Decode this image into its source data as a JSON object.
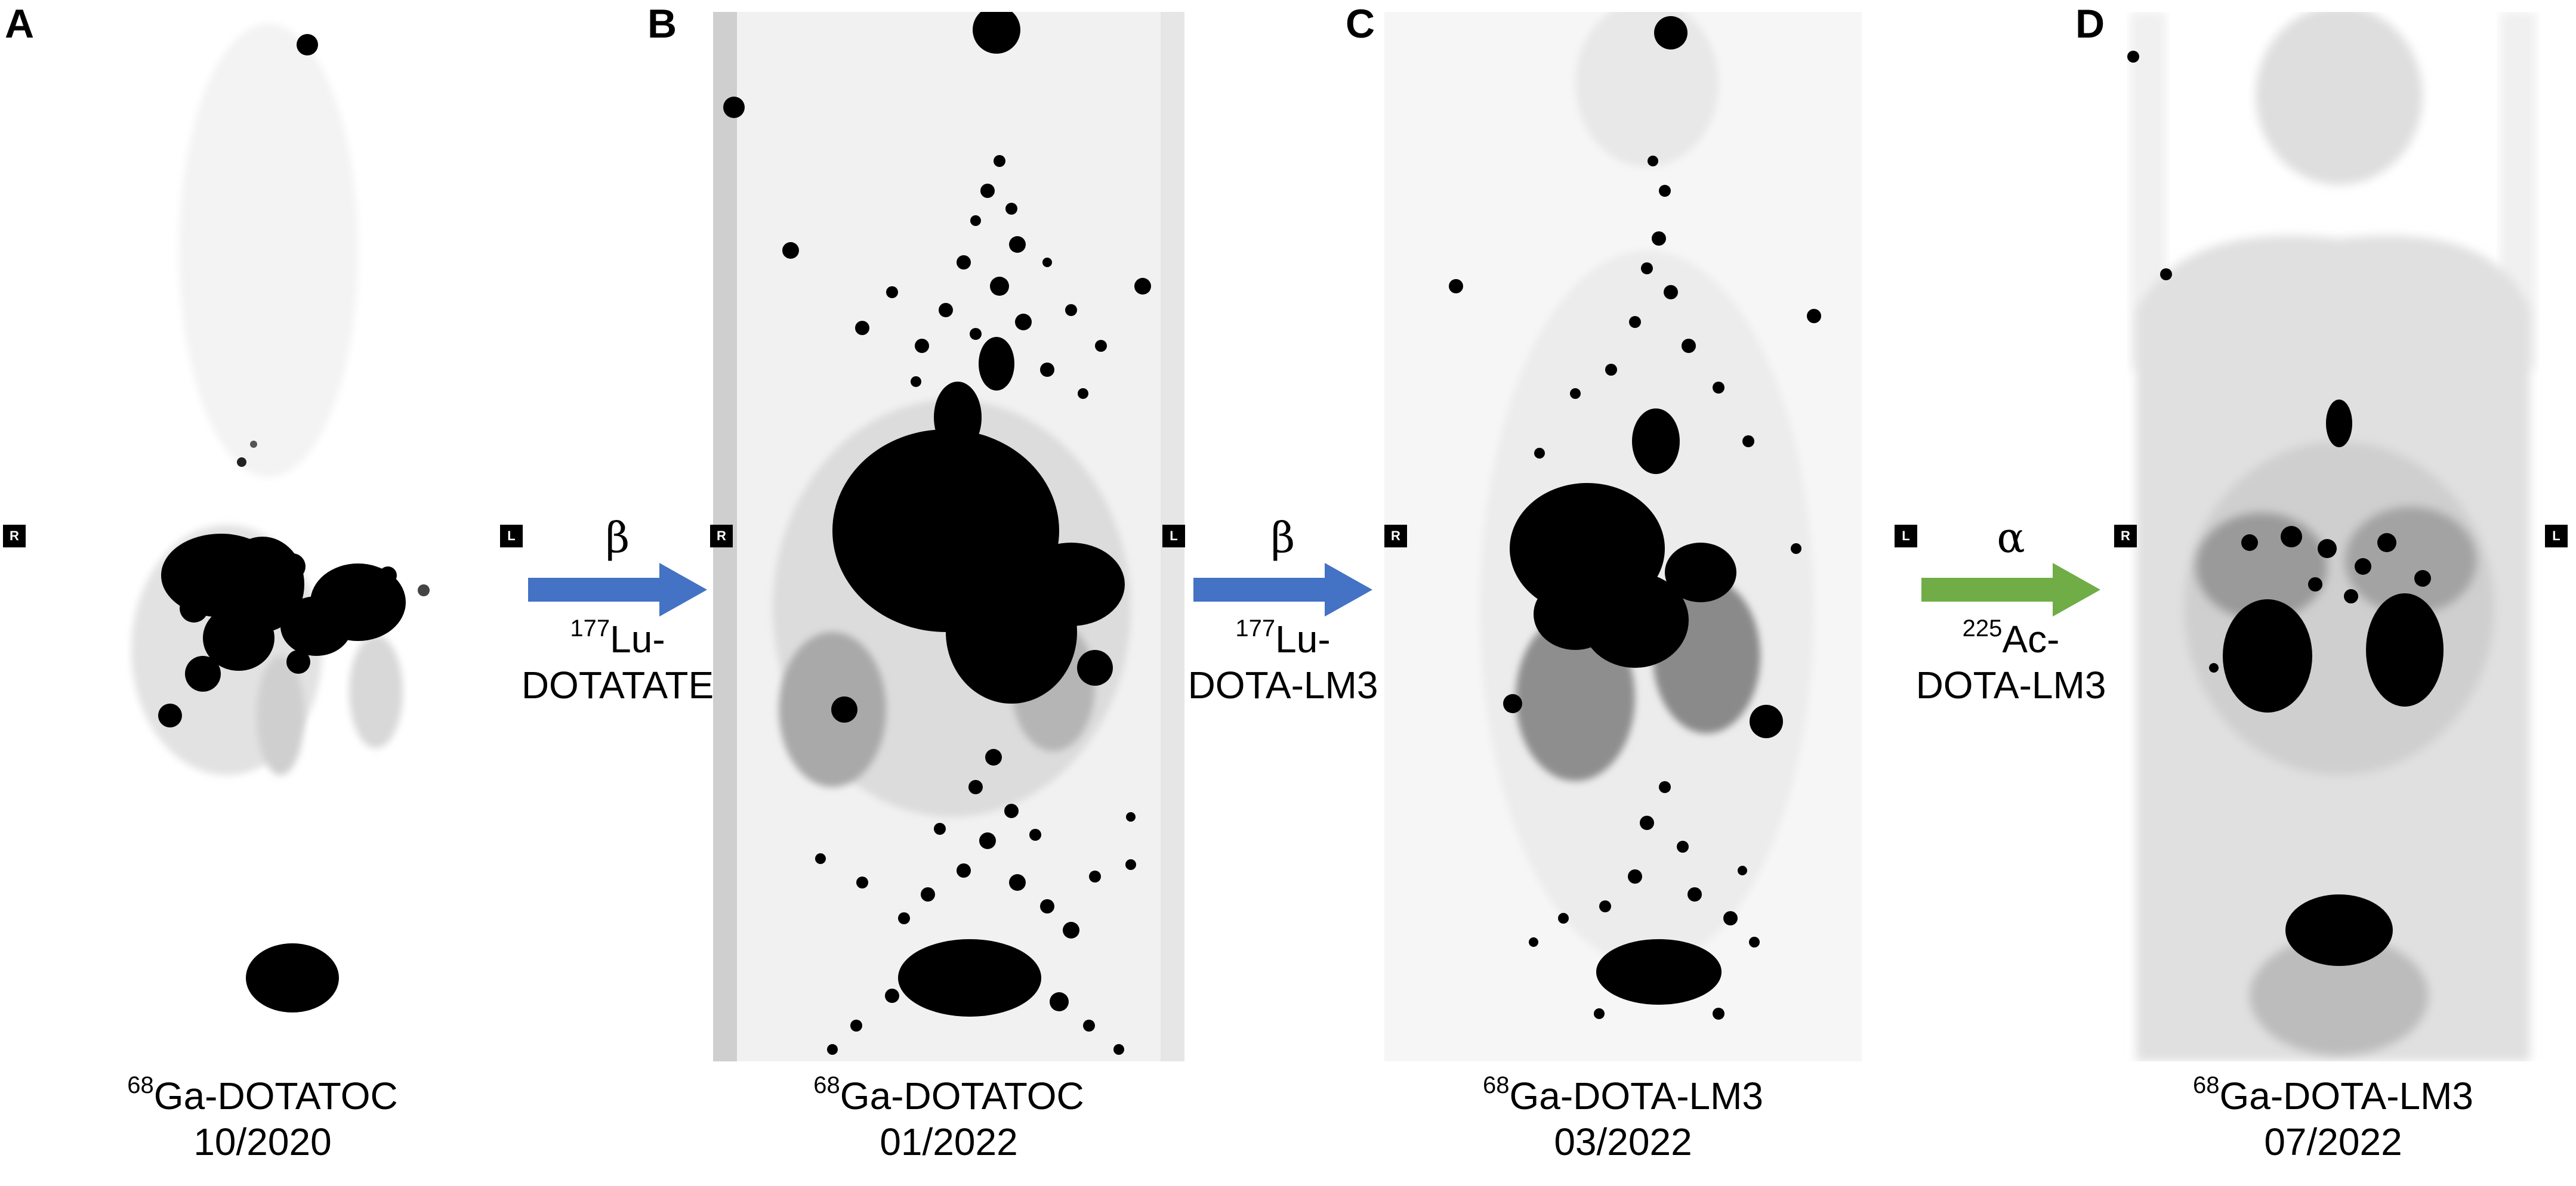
{
  "panels": [
    {
      "letter": "A",
      "caption_iso": "68",
      "caption_tracer": "Ga-DOTATOC",
      "caption_date": "10/2020"
    },
    {
      "letter": "B",
      "caption_iso": "68",
      "caption_tracer": "Ga-DOTATOC",
      "caption_date": "01/2022"
    },
    {
      "letter": "C",
      "caption_iso": "68",
      "caption_tracer": "Ga-DOTA-LM3",
      "caption_date": "03/2022"
    },
    {
      "letter": "D",
      "caption_iso": "68",
      "caption_tracer": "Ga-DOTA-LM3",
      "caption_date": "07/2022"
    }
  ],
  "markers": {
    "right": "R",
    "left": "L"
  },
  "therapies": [
    {
      "particle": "β",
      "iso": "177",
      "agent_line1": "Lu-",
      "agent_line2": "DOTATATE",
      "color": "#4472C4"
    },
    {
      "particle": "β",
      "iso": "177",
      "agent_line1": "Lu-",
      "agent_line2": "DOTA-LM3",
      "color": "#4472C4"
    },
    {
      "particle": "α",
      "iso": "225",
      "agent_line1": "Ac-",
      "agent_line2": "DOTA-LM3",
      "color": "#70AD47"
    }
  ]
}
